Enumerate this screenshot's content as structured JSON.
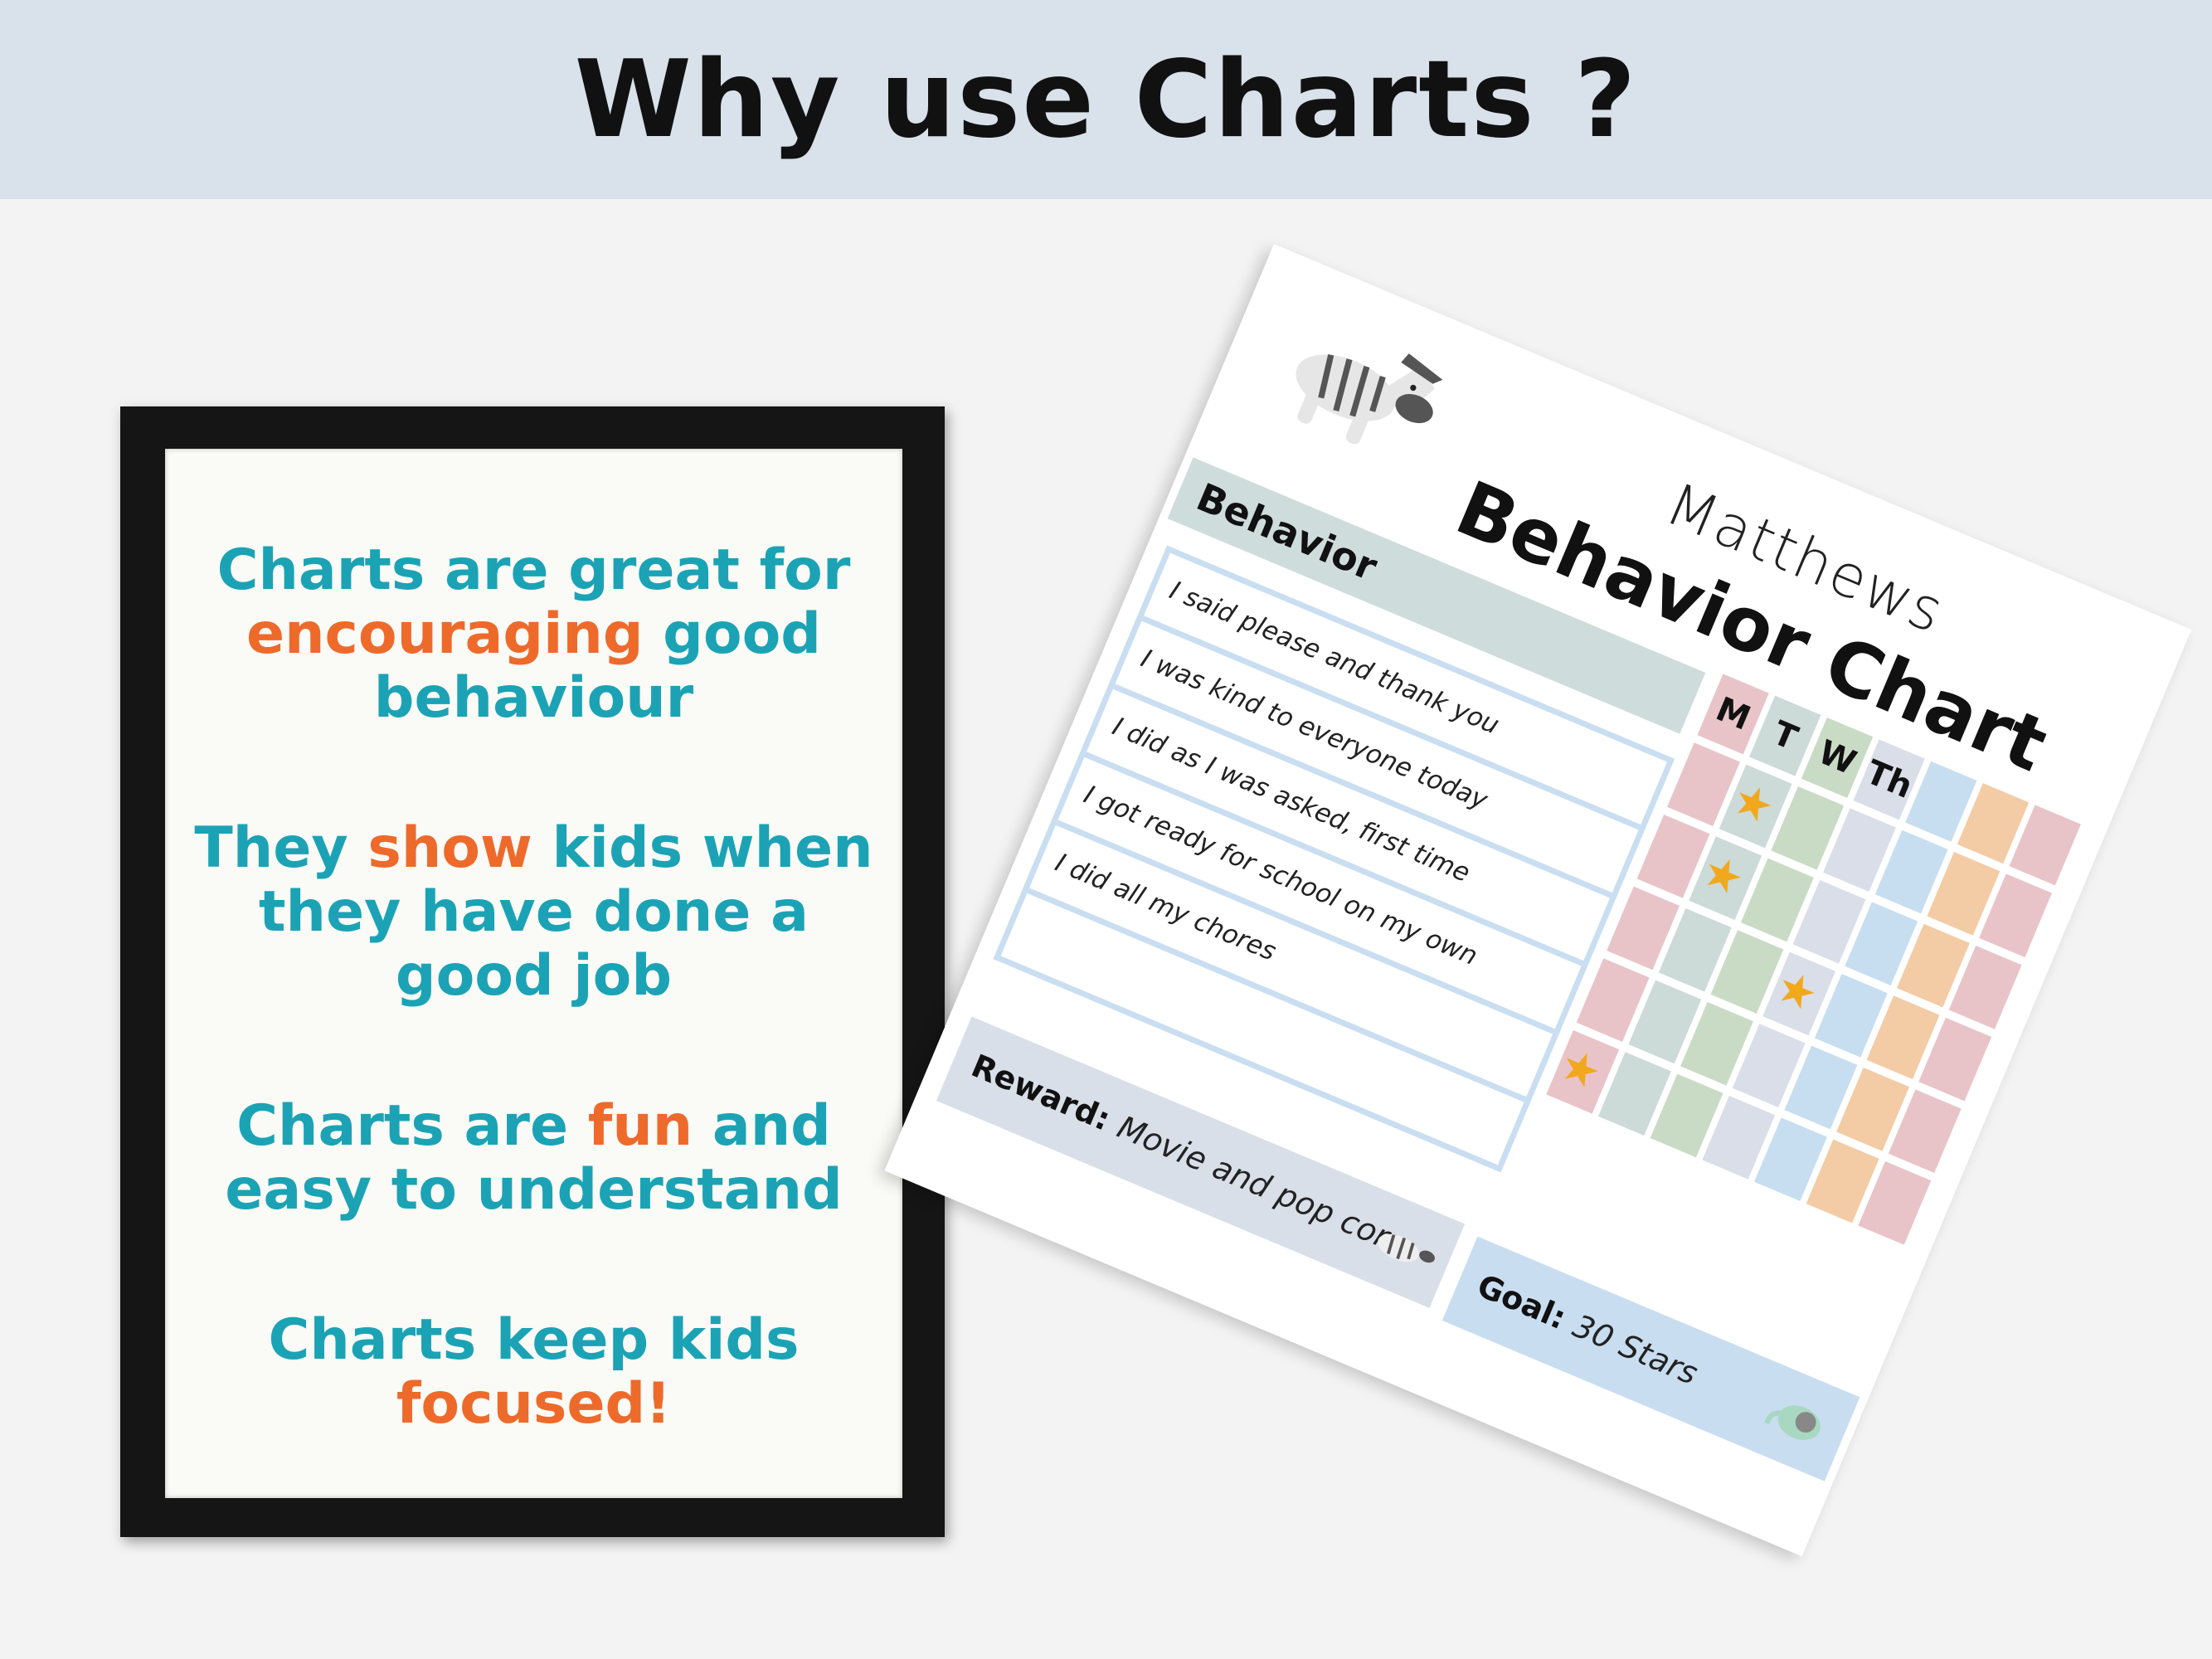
{
  "banner": {
    "title": "Why use Charts ?"
  },
  "frame": {
    "colors": {
      "text": "#1ba3b5",
      "highlight": "#ee6a2b"
    },
    "paragraphs": [
      {
        "segments": [
          {
            "t": "Charts are great for ",
            "hl": false
          },
          {
            "t": "encouraging",
            "hl": true
          },
          {
            "t": " good behaviour",
            "hl": false
          }
        ]
      },
      {
        "segments": [
          {
            "t": "They ",
            "hl": false
          },
          {
            "t": "show",
            "hl": true
          },
          {
            "t": " kids when they have done a good job",
            "hl": false
          }
        ]
      },
      {
        "segments": [
          {
            "t": "Charts are ",
            "hl": false
          },
          {
            "t": "fun",
            "hl": true
          },
          {
            "t": " and easy to understand",
            "hl": false
          }
        ]
      },
      {
        "segments": [
          {
            "t": "Charts keep kids ",
            "hl": false
          },
          {
            "t": "focused!",
            "hl": true
          }
        ]
      }
    ]
  },
  "chart": {
    "name": "Matthews",
    "title": "Behavior Chart",
    "behavior_header": "Behavior",
    "behaviors": [
      "I said please and thank you",
      "I was kind to everyone today",
      "I did as I was asked, first time",
      "I got ready for school on my own",
      "I did all my chores",
      ""
    ],
    "reward_label": "Reward:",
    "reward_value": "Movie and pop corn",
    "goal_label": "Goal:",
    "goal_value": "30 Stars",
    "days": [
      {
        "label": "M",
        "color": "#e8c4c8"
      },
      {
        "label": "T",
        "color": "#ccdad8"
      },
      {
        "label": "W",
        "color": "#c9dbc4"
      },
      {
        "label": "Th",
        "color": "#d9dee9"
      },
      {
        "label": "",
        "color": "#c7def0"
      },
      {
        "label": "",
        "color": "#f3cba5"
      },
      {
        "label": "",
        "color": "#e8c4c8"
      }
    ],
    "stars": [
      {
        "day": "M",
        "row": 5
      },
      {
        "day": "T",
        "row": 1
      },
      {
        "day": "T",
        "row": 2
      },
      {
        "day": "Th",
        "row": 3
      }
    ],
    "star_color": "#f2a81d",
    "icons": [
      "zebra-icon",
      "zebra-small-icon",
      "elephant-icon",
      "star-icon"
    ]
  }
}
